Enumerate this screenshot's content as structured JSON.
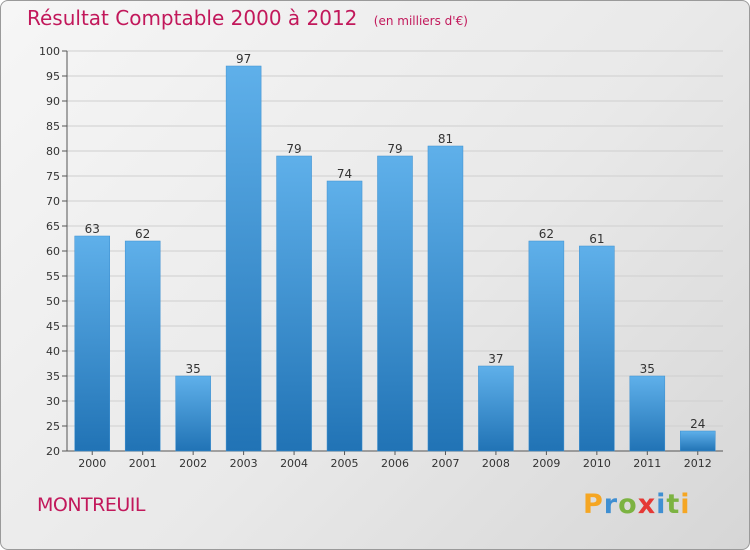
{
  "title": "Résultat Comptable 2000 à 2012",
  "subtitle": "(en milliers d'€)",
  "city": "MONTREUIL",
  "logo": {
    "letters": [
      "P",
      "r",
      "o",
      "x",
      "i",
      "t",
      "i"
    ],
    "colors": [
      "#f5a623",
      "#3f8fd2",
      "#7cb342",
      "#e53935",
      "#3f8fd2",
      "#7cb342",
      "#f5a623"
    ]
  },
  "colors": {
    "title": "#c2185b",
    "bar_top": "#5fb0ea",
    "bar_bottom": "#2173b5",
    "bar_stroke": "#3b8fd0",
    "grid": "#cfcfcf"
  },
  "chart_data": {
    "type": "bar",
    "categories": [
      "2000",
      "2001",
      "2002",
      "2003",
      "2004",
      "2005",
      "2006",
      "2007",
      "2008",
      "2009",
      "2010",
      "2011",
      "2012"
    ],
    "values": [
      63,
      62,
      35,
      97,
      79,
      74,
      79,
      81,
      37,
      62,
      61,
      35,
      24
    ],
    "ylim": [
      20,
      100
    ],
    "ytick_step": 5,
    "grid": true,
    "data_labels": true
  }
}
